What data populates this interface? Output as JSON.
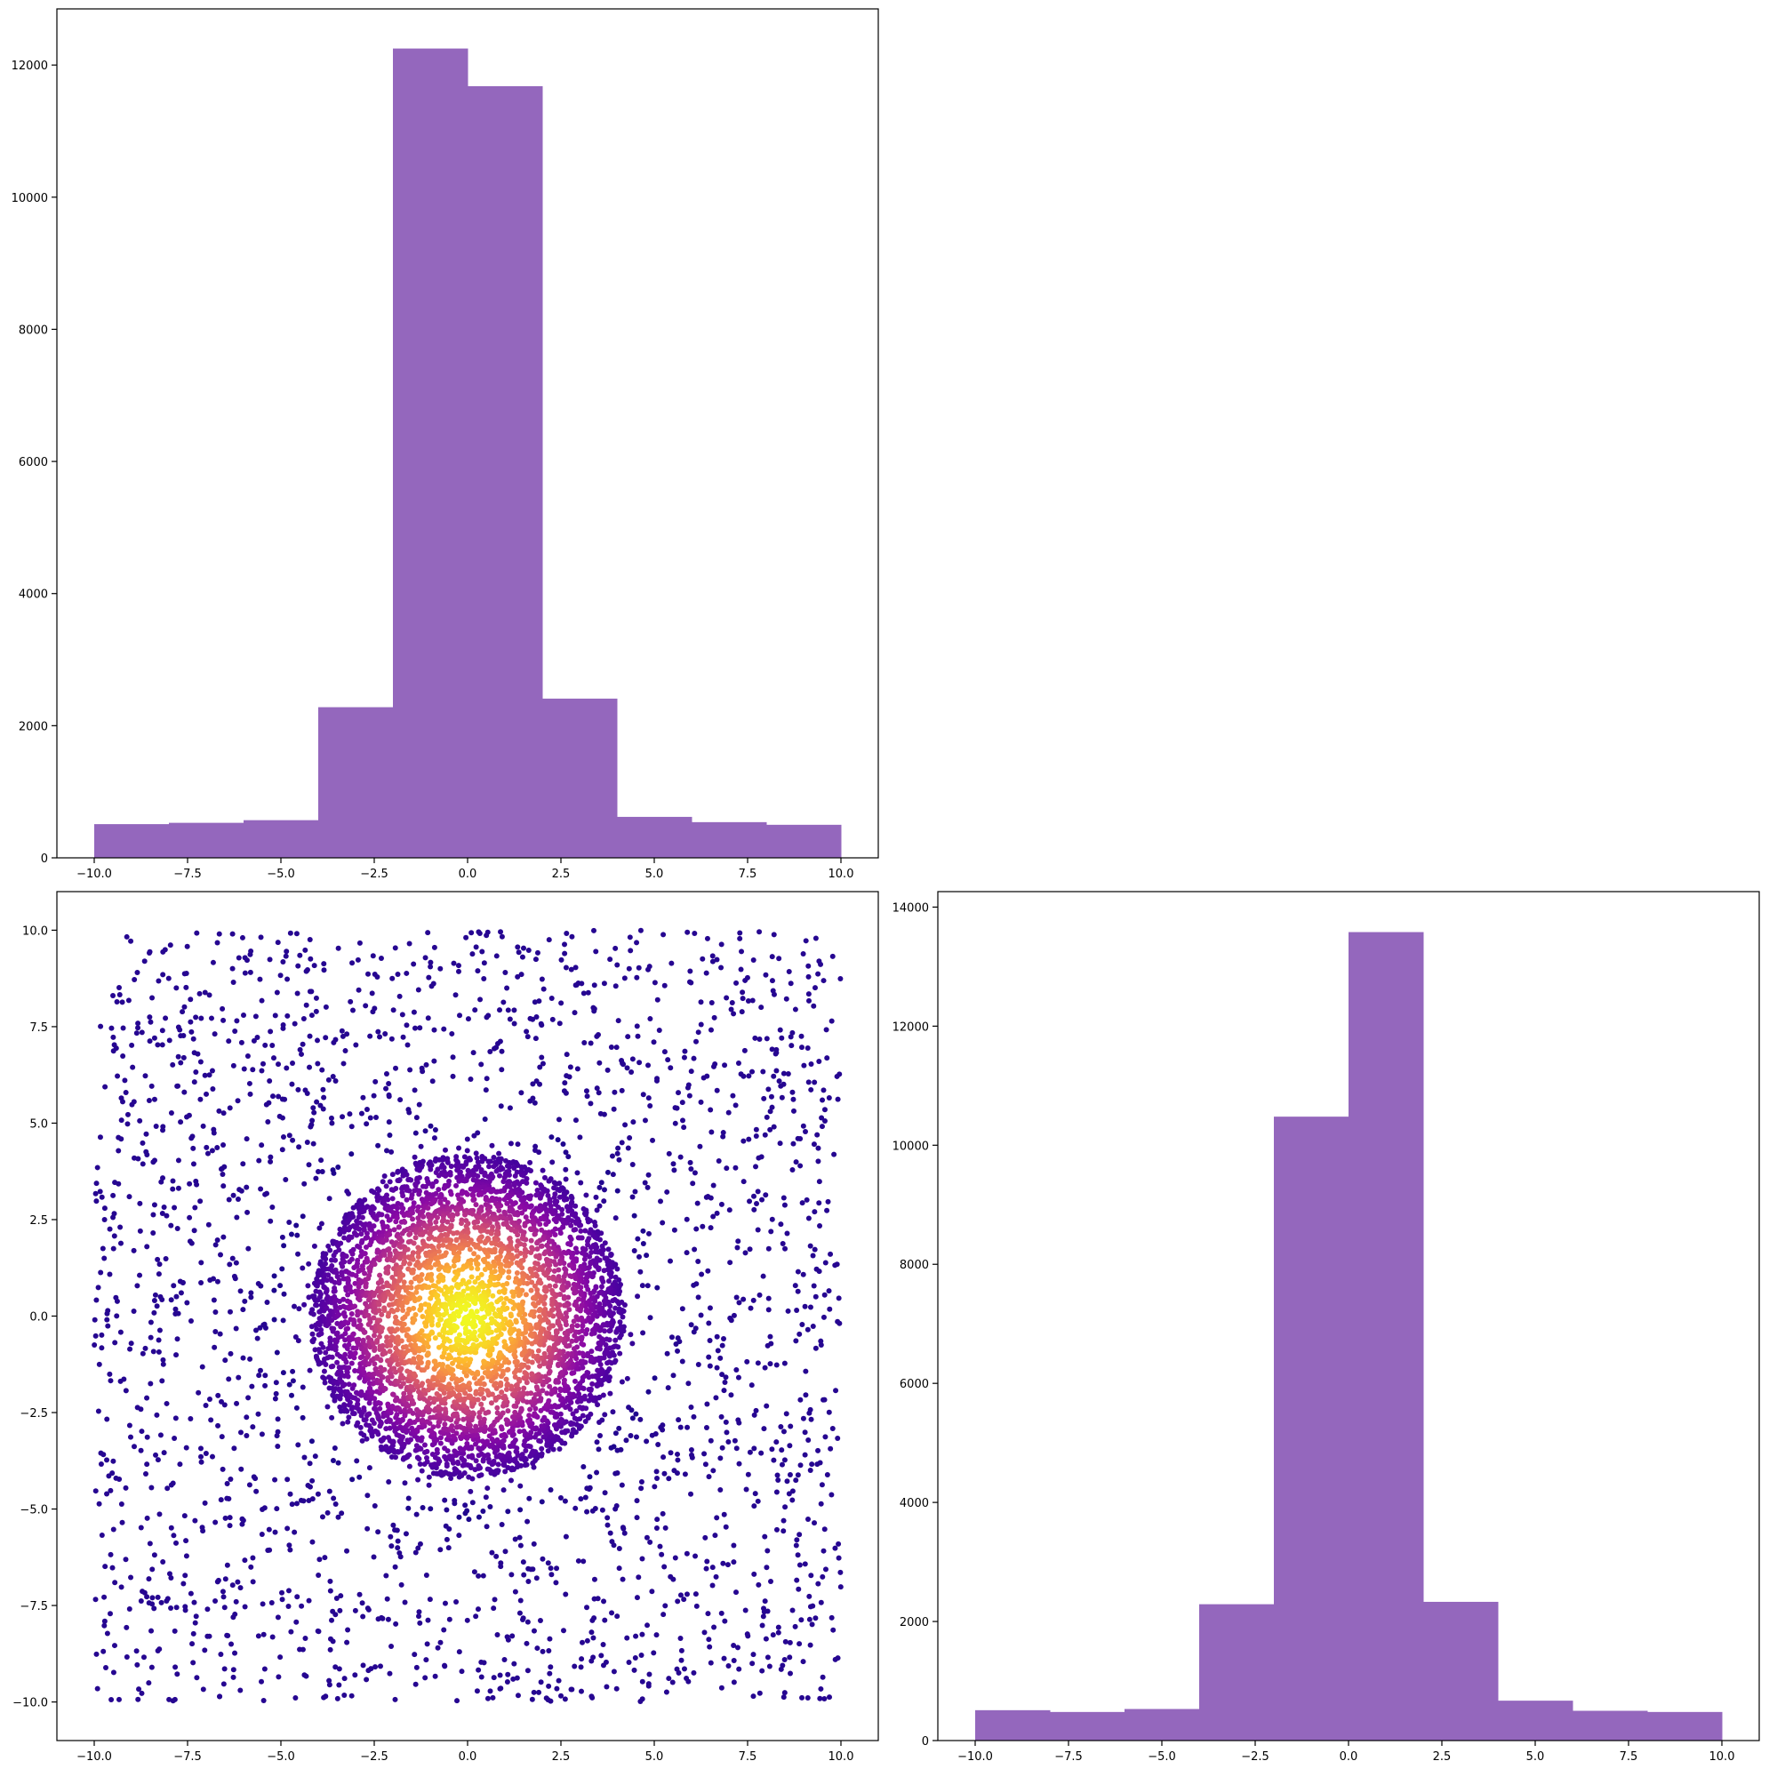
{
  "chart_data": [
    {
      "type": "bar",
      "panel": "top-left",
      "title": "",
      "xlabel": "",
      "ylabel": "",
      "bin_edges": [
        -10,
        -8,
        -6,
        -4,
        -2,
        0,
        2,
        4,
        6,
        8,
        10
      ],
      "values": [
        510,
        530,
        570,
        2280,
        12250,
        11680,
        2410,
        620,
        540,
        500
      ],
      "xlim": [
        -11,
        11
      ],
      "ylim": [
        0,
        12850
      ],
      "xticks": [
        -10.0,
        -7.5,
        -5.0,
        -2.5,
        0.0,
        2.5,
        5.0,
        7.5,
        10.0
      ],
      "xtick_labels": [
        "−10.0",
        "−7.5",
        "−5.0",
        "−2.5",
        "0.0",
        "2.5",
        "5.0",
        "7.5",
        "10.0"
      ],
      "yticks": [
        0,
        2000,
        4000,
        6000,
        8000,
        10000,
        12000
      ],
      "ytick_labels": [
        "0",
        "2000",
        "4000",
        "6000",
        "8000",
        "10000",
        "12000"
      ],
      "color": "#9467bd",
      "grid": false
    },
    {
      "type": "scatter",
      "panel": "bottom-left",
      "title": "",
      "xlabel": "",
      "ylabel": "",
      "description_uniform_background": {
        "x_range": [
          -10,
          10
        ],
        "y_range": [
          -10,
          10
        ],
        "approx_points": 2400
      },
      "description_central_cluster": {
        "center": [
          0,
          0
        ],
        "radius": 4.2,
        "approx_points": 4200
      },
      "xlim": [
        -11,
        11
      ],
      "ylim": [
        -11,
        11
      ],
      "xticks": [
        -10.0,
        -7.5,
        -5.0,
        -2.5,
        0.0,
        2.5,
        5.0,
        7.5,
        10.0
      ],
      "xtick_labels": [
        "−10.0",
        "−7.5",
        "−5.0",
        "−2.5",
        "0.0",
        "2.5",
        "5.0",
        "7.5",
        "10.0"
      ],
      "yticks": [
        -10.0,
        -7.5,
        -5.0,
        -2.5,
        0.0,
        2.5,
        5.0,
        7.5,
        10.0
      ],
      "ytick_labels": [
        "−10.0",
        "−7.5",
        "−5.0",
        "−2.5",
        "0.0",
        "2.5",
        "5.0",
        "7.5",
        "10.0"
      ],
      "colormap": "plasma",
      "colormap_stops": [
        "#0d0887",
        "#5302a3",
        "#8b0aa5",
        "#b83289",
        "#db5c68",
        "#f48849",
        "#febd2a",
        "#f0f921"
      ],
      "grid": false
    },
    {
      "type": "bar",
      "panel": "bottom-right",
      "title": "",
      "xlabel": "",
      "ylabel": "",
      "bin_edges": [
        -10,
        -8,
        -6,
        -4,
        -2,
        0,
        2,
        4,
        6,
        8,
        10
      ],
      "values": [
        510,
        480,
        530,
        2290,
        10480,
        13580,
        2330,
        670,
        500,
        480
      ],
      "xlim": [
        -11,
        11
      ],
      "ylim": [
        0,
        14260
      ],
      "xticks": [
        -10.0,
        -7.5,
        -5.0,
        -2.5,
        0.0,
        2.5,
        5.0,
        7.5,
        10.0
      ],
      "xtick_labels": [
        "−10.0",
        "−7.5",
        "−5.0",
        "−2.5",
        "0.0",
        "2.5",
        "5.0",
        "7.5",
        "10.0"
      ],
      "yticks": [
        0,
        2000,
        4000,
        6000,
        8000,
        10000,
        12000,
        14000
      ],
      "ytick_labels": [
        "0",
        "2000",
        "4000",
        "6000",
        "8000",
        "10000",
        "12000",
        "14000"
      ],
      "color": "#9467bd",
      "grid": false
    }
  ]
}
